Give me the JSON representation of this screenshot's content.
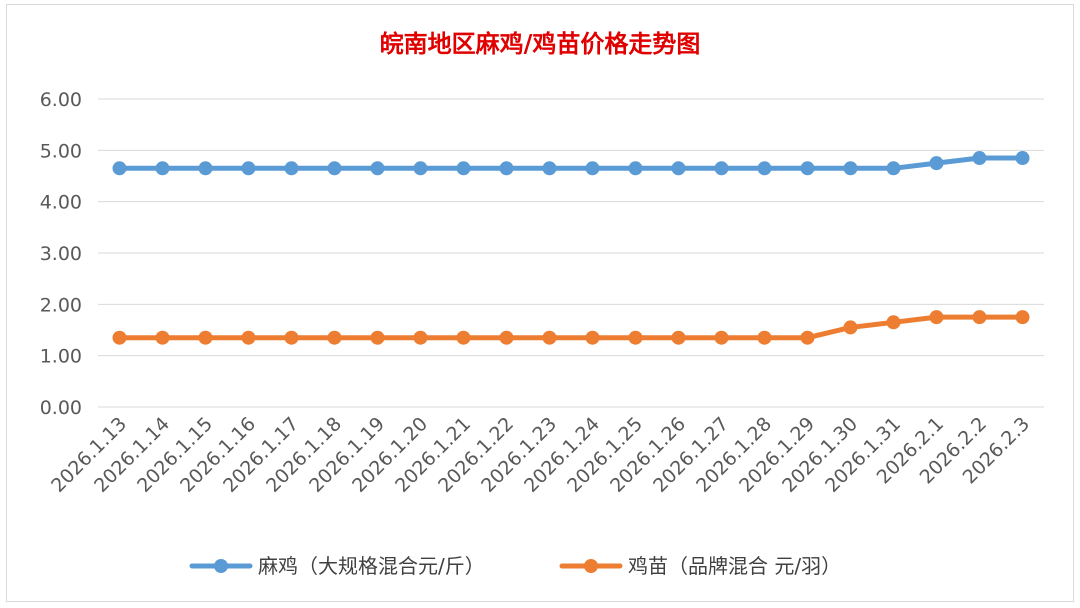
{
  "chart_data": {
    "type": "line",
    "title": "皖南地区麻鸡/鸡苗价格走势图",
    "title_color": "#e00000",
    "xlabel": "",
    "ylabel": "",
    "ylim": [
      0,
      6
    ],
    "yticks": [
      "0.00",
      "1.00",
      "2.00",
      "3.00",
      "4.00",
      "5.00",
      "6.00"
    ],
    "grid": true,
    "legend_position": "bottom",
    "categories": [
      "2026.1.13",
      "2026.1.14",
      "2026.1.15",
      "2026.1.16",
      "2026.1.17",
      "2026.1.18",
      "2026.1.19",
      "2026.1.20",
      "2026.1.21",
      "2026.1.22",
      "2026.1.23",
      "2026.1.24",
      "2026.1.25",
      "2026.1.26",
      "2026.1.27",
      "2026.1.28",
      "2026.1.29",
      "2026.1.30",
      "2026.1.31",
      "2026.2.1",
      "2026.2.2",
      "2026.2.3"
    ],
    "series": [
      {
        "name": "麻鸡（大规格混合元/斤）",
        "color": "#5b9bd5",
        "values": [
          4.65,
          4.65,
          4.65,
          4.65,
          4.65,
          4.65,
          4.65,
          4.65,
          4.65,
          4.65,
          4.65,
          4.65,
          4.65,
          4.65,
          4.65,
          4.65,
          4.65,
          4.65,
          4.65,
          4.75,
          4.85,
          4.85
        ]
      },
      {
        "name": "鸡苗（品牌混合 元/羽）",
        "color": "#ed7d31",
        "values": [
          1.35,
          1.35,
          1.35,
          1.35,
          1.35,
          1.35,
          1.35,
          1.35,
          1.35,
          1.35,
          1.35,
          1.35,
          1.35,
          1.35,
          1.35,
          1.35,
          1.35,
          1.55,
          1.65,
          1.75,
          1.75,
          1.75
        ]
      }
    ]
  }
}
